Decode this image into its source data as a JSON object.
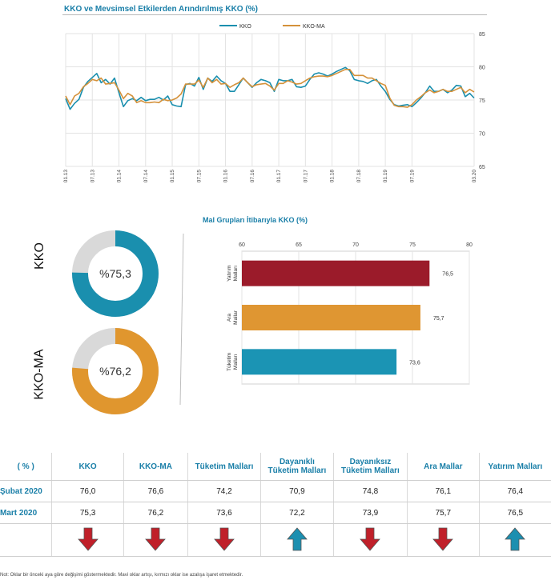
{
  "line_chart": {
    "title": "KKO ve Mevsimsel Etkilerden Arındırılmış KKO (%)",
    "legend": [
      "KKO",
      "KKO-MA"
    ]
  },
  "donuts": [
    {
      "label": "KKO",
      "pct_label": "%75,3",
      "value": 75.3,
      "color": "#1a8fae"
    },
    {
      "label": "KKO-MA",
      "pct_label": "%76,2",
      "value": 76.2,
      "color": "#e0962e"
    }
  ],
  "bar_chart": {
    "title": "Mal Grupları İtibarıyla KKO (%)"
  },
  "colors": {
    "kko": "#1a8fae",
    "kko_ma": "#d4913a",
    "bar_yatirim": "#9b1b2a",
    "bar_ara": "#df9632",
    "bar_tuketim": "#1b94b4",
    "arrow_down": "#c0202a",
    "arrow_up": "#1c8fb0"
  },
  "table": {
    "headers": [
      "( % )",
      "KKO",
      "KKO-MA",
      "Tüketim Malları",
      "Dayanıklı Tüketim Malları",
      "Dayanıksız Tüketim Malları",
      "Ara Mallar",
      "Yatırım Malları"
    ],
    "rows": [
      {
        "label": "Şubat 2020",
        "values": [
          "76,0",
          "76,6",
          "74,2",
          "70,9",
          "74,8",
          "76,1",
          "76,4"
        ]
      },
      {
        "label": "Mart 2020",
        "values": [
          "75,3",
          "76,2",
          "73,6",
          "72,2",
          "73,9",
          "75,7",
          "76,5"
        ]
      }
    ],
    "arrows": [
      "down",
      "down",
      "down",
      "up",
      "down",
      "down",
      "up"
    ]
  },
  "note": "Not: Oklar bir önceki aya göre değişimi göstermektedir. Mavi oklar artışı, kırmızı oklar ise azalışa işaret etmektedir.",
  "chart_data": [
    {
      "type": "line",
      "title": "KKO ve Mevsimsel Etkilerden Arındırılmış KKO (%)",
      "ylim": [
        65,
        85
      ],
      "yticks": [
        65,
        70,
        75,
        80,
        85
      ],
      "xtick_labels": [
        "01.13",
        "07.13",
        "01.14",
        "07.14",
        "01.15",
        "07.15",
        "01.16",
        "07.16",
        "01.17",
        "07.17",
        "01.18",
        "07.18",
        "01.19",
        "07.19",
        "03.20"
      ],
      "grid": true,
      "legend": "top",
      "series": [
        {
          "name": "KKO",
          "values": [
            75.2,
            73.6,
            74.5,
            75.1,
            76.9,
            77.8,
            78.4,
            79.0,
            77.6,
            78.1,
            77.4,
            78.3,
            76.1,
            74.0,
            74.9,
            75.2,
            74.9,
            75.4,
            74.9,
            75.1,
            75.1,
            75.4,
            75.0,
            75.6,
            74.3,
            74.1,
            74.0,
            77.3,
            77.5,
            77.1,
            78.4,
            76.6,
            78.3,
            77.8,
            78.6,
            77.9,
            77.5,
            76.3,
            76.3,
            77.3,
            78.3,
            77.6,
            76.9,
            77.6,
            78.1,
            77.9,
            77.6,
            76.3,
            78.1,
            77.9,
            77.9,
            78.1,
            77.0,
            76.9,
            77.1,
            78.1,
            78.9,
            79.1,
            78.9,
            78.6,
            78.9,
            79.3,
            79.6,
            79.9,
            79.4,
            78.1,
            77.9,
            77.8,
            77.5,
            77.9,
            78.1,
            77.1,
            76.3,
            75.1,
            74.3,
            74.1,
            74.2,
            74.3,
            74.0,
            74.6,
            75.3,
            76.1,
            77.1,
            76.3,
            76.3,
            76.6,
            76.1,
            76.5,
            77.2,
            77.1,
            75.5,
            76.0,
            75.3
          ]
        },
        {
          "name": "KKO-MA",
          "values": [
            75.6,
            74.3,
            75.6,
            76.0,
            77.0,
            77.5,
            78.1,
            77.9,
            78.3,
            77.4,
            77.5,
            77.6,
            76.5,
            75.2,
            76.0,
            75.6,
            74.6,
            74.9,
            74.6,
            74.6,
            74.7,
            74.6,
            75.1,
            74.9,
            75.0,
            75.3,
            75.9,
            77.4,
            77.4,
            77.4,
            78.0,
            76.9,
            78.3,
            77.6,
            78.1,
            77.4,
            77.5,
            76.9,
            77.3,
            77.6,
            78.3,
            77.6,
            77.0,
            77.3,
            77.4,
            77.5,
            77.1,
            76.5,
            77.5,
            77.5,
            77.9,
            77.7,
            77.4,
            77.5,
            77.9,
            78.3,
            78.5,
            78.6,
            78.6,
            78.5,
            78.7,
            79.0,
            79.3,
            79.6,
            79.6,
            78.7,
            78.7,
            78.7,
            78.3,
            78.3,
            77.9,
            77.5,
            77.2,
            75.3,
            74.2,
            74.0,
            74.0,
            73.9,
            74.3,
            75.0,
            75.5,
            76.1,
            76.5,
            76.1,
            76.3,
            76.6,
            76.3,
            76.3,
            76.6,
            76.9,
            76.1,
            76.6,
            76.2
          ]
        }
      ]
    },
    {
      "type": "bar",
      "title": "Mal Grupları İtibarıyla KKO (%)",
      "orientation": "horizontal",
      "categories": [
        "Yatırım Malları",
        "Ara Mallar",
        "Tüketim Malları"
      ],
      "values": [
        76.5,
        75.7,
        73.6
      ],
      "value_labels": [
        "76,5",
        "75,7",
        "73,6"
      ],
      "xlim": [
        60,
        80
      ],
      "xticks": [
        60,
        65,
        70,
        75,
        80
      ],
      "grid": true
    },
    {
      "type": "pie",
      "subtype": "donut",
      "name": "KKO",
      "values": [
        75.3,
        24.7
      ],
      "label": "%75,3"
    },
    {
      "type": "pie",
      "subtype": "donut",
      "name": "KKO-MA",
      "values": [
        76.2,
        23.8
      ],
      "label": "%76,2"
    },
    {
      "type": "table",
      "headers": [
        "( % )",
        "KKO",
        "KKO-MA",
        "Tüketim Malları",
        "Dayanıklı Tüketim Malları",
        "Dayanıksız Tüketim Malları",
        "Ara Mallar",
        "Yatırım Malları"
      ],
      "rows": [
        [
          "Şubat 2020",
          "76,0",
          "76,6",
          "74,2",
          "70,9",
          "74,8",
          "76,1",
          "76,4"
        ],
        [
          "Mart 2020",
          "75,3",
          "76,2",
          "73,6",
          "72,2",
          "73,9",
          "75,7",
          "76,5"
        ]
      ]
    }
  ]
}
